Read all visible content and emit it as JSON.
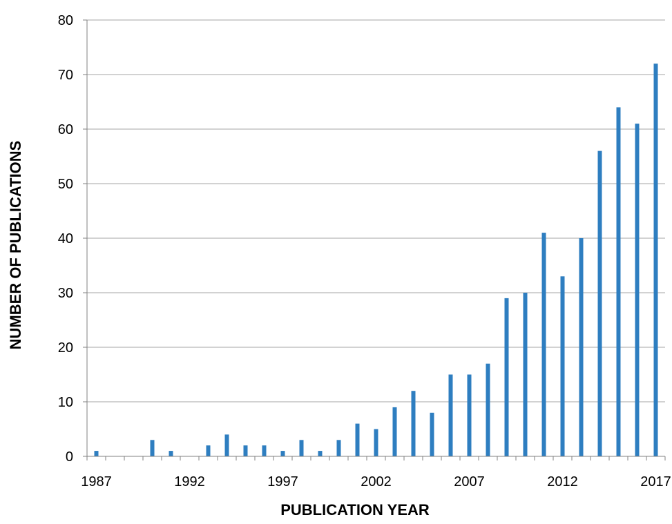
{
  "chart_data": {
    "type": "bar",
    "title": "",
    "xlabel": "PUBLICATION YEAR",
    "ylabel": "NUMBER OF PUBLICATIONS",
    "x": [
      1987,
      1988,
      1989,
      1990,
      1991,
      1992,
      1993,
      1994,
      1995,
      1996,
      1997,
      1998,
      1999,
      2000,
      2001,
      2002,
      2003,
      2004,
      2005,
      2006,
      2007,
      2008,
      2009,
      2010,
      2011,
      2012,
      2013,
      2014,
      2015,
      2016,
      2017
    ],
    "values": [
      1,
      0,
      0,
      3,
      1,
      0,
      2,
      4,
      2,
      2,
      1,
      3,
      1,
      3,
      6,
      5,
      9,
      12,
      8,
      15,
      15,
      17,
      29,
      30,
      41,
      33,
      40,
      56,
      64,
      61,
      72
    ],
    "ylim": [
      0,
      80
    ],
    "yticks": [
      "0",
      "10",
      "20",
      "30",
      "40",
      "50",
      "60",
      "70",
      "80"
    ],
    "xticks": [
      "1987",
      "1992",
      "1997",
      "2002",
      "2007",
      "2012",
      "2017"
    ],
    "grid": "horizontal",
    "legend": "none",
    "bar_color": "#2E7EC0",
    "grid_color": "#A6A6A6",
    "axis_color": "#808080"
  }
}
